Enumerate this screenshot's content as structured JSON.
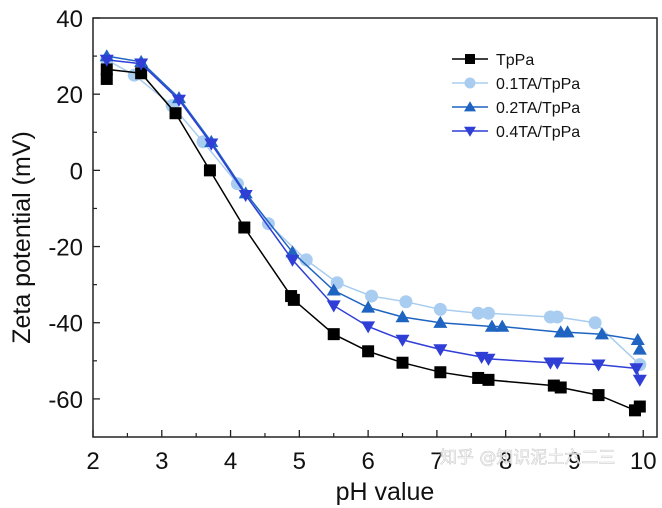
{
  "chart_data": {
    "type": "line",
    "title": "",
    "xlabel": "pH value",
    "ylabel": "Zeta potential (mV)",
    "xlim": [
      2,
      10.2
    ],
    "ylim": [
      -70,
      40
    ],
    "x_ticks": [
      2,
      3,
      4,
      5,
      6,
      7,
      8,
      9,
      10
    ],
    "y_ticks": [
      -60,
      -40,
      -20,
      0,
      20,
      40
    ],
    "grid": false,
    "legend_position": "top-right",
    "series": [
      {
        "name": "TpPa",
        "color": "#000000",
        "marker": "square",
        "x": [
          2.2,
          2.2,
          2.7,
          3.2,
          3.7,
          4.2,
          4.88,
          4.92,
          5.5,
          6.0,
          6.5,
          7.05,
          7.6,
          7.75,
          8.7,
          8.8,
          9.35,
          9.88,
          9.95
        ],
        "y": [
          24,
          26.5,
          25.5,
          15,
          0,
          -15,
          -33,
          -34,
          -43,
          -47.5,
          -50.5,
          -53,
          -54.5,
          -55,
          -56.5,
          -57,
          -59,
          -63,
          -62
        ]
      },
      {
        "name": "0.1TA/TpPa",
        "color": "#a9cdf0",
        "marker": "circle",
        "x": [
          2.2,
          2.6,
          3.15,
          3.6,
          4.1,
          4.55,
          5.1,
          5.55,
          6.05,
          6.55,
          7.05,
          7.6,
          7.75,
          8.65,
          8.75,
          9.3,
          9.95
        ],
        "y": [
          29,
          25,
          17,
          7.5,
          -3.5,
          -14,
          -23.5,
          -29.5,
          -33,
          -34.5,
          -36.5,
          -37.5,
          -37.5,
          -38.5,
          -38.5,
          -40,
          -51
        ]
      },
      {
        "name": "0.2TA/TpPa",
        "color": "#1f64c0",
        "marker": "triangle-up",
        "x": [
          2.2,
          2.7,
          3.25,
          3.72,
          4.22,
          4.9,
          5.5,
          6.0,
          6.5,
          7.05,
          7.8,
          7.95,
          8.8,
          8.9,
          9.4,
          9.92,
          9.95
        ],
        "y": [
          30,
          28.5,
          19,
          7.5,
          -6,
          -21.5,
          -31.5,
          -36,
          -38.5,
          -40,
          -41,
          -41,
          -42.5,
          -42.5,
          -43,
          -44.5,
          -47
        ]
      },
      {
        "name": "0.4TA/TpPa",
        "color": "#2f3fd6",
        "marker": "triangle-down",
        "x": [
          2.2,
          2.7,
          3.25,
          3.72,
          4.22,
          4.9,
          5.5,
          6.0,
          6.5,
          7.05,
          7.65,
          7.75,
          8.65,
          8.75,
          9.35,
          9.9,
          9.95
        ],
        "y": [
          29,
          28,
          18.5,
          7,
          -6.5,
          -23.5,
          -35.5,
          -41,
          -44.5,
          -47,
          -49,
          -49.5,
          -50.5,
          -50.5,
          -51,
          -52,
          -55
        ]
      }
    ]
  },
  "watermark": "知乎 @知识泥土六二三"
}
